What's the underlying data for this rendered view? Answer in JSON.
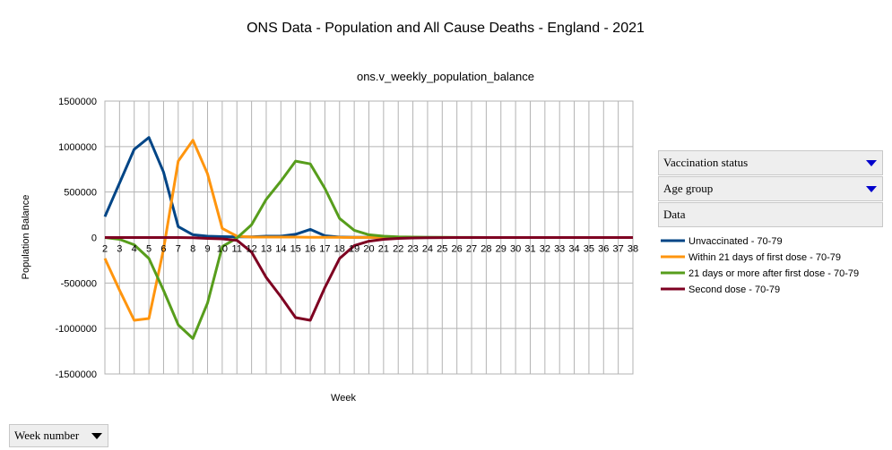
{
  "chart_data": {
    "type": "line",
    "title": "ONS Data - Population and All Cause Deaths - England - 2021",
    "subtitle": "ons.v_weekly_population_balance",
    "xlabel": "Week",
    "ylabel": "Population Balance",
    "ylim": [
      -1500000,
      1500000
    ],
    "yticks": [
      1500000,
      1000000,
      500000,
      0,
      -500000,
      -1000000,
      -1500000
    ],
    "ytick_labels": [
      "1500000",
      "1000000",
      "500000",
      "0",
      "-500000",
      "-1000000",
      "-1500000"
    ],
    "x": [
      "2",
      "3",
      "4",
      "5",
      "6",
      "7",
      "8",
      "9",
      "10",
      "11",
      "12",
      "13",
      "14",
      "15",
      "16",
      "17",
      "18",
      "19",
      "20",
      "21",
      "22",
      "23",
      "24",
      "25",
      "26",
      "27",
      "28",
      "29",
      "30",
      "31",
      "32",
      "33",
      "34",
      "35",
      "36",
      "37",
      "38"
    ],
    "grid": true,
    "legend_position": "right",
    "series": [
      {
        "name": "Unvaccinated - 70-79",
        "color": "#004586",
        "values": [
          230000,
          600000,
          970000,
          1100000,
          720000,
          120000,
          30000,
          15000,
          10000,
          8000,
          8000,
          15000,
          15000,
          35000,
          90000,
          20000,
          5000,
          3000,
          2000,
          1000,
          1000,
          500,
          500,
          0,
          0,
          0,
          0,
          0,
          0,
          0,
          0,
          0,
          0,
          0,
          0,
          0,
          0
        ]
      },
      {
        "name": "Within 21 days of first dose - 70-79",
        "color": "#ff950e",
        "values": [
          -230000,
          -580000,
          -910000,
          -890000,
          -130000,
          840000,
          1070000,
          700000,
          100000,
          15000,
          5000,
          5000,
          5000,
          5000,
          3000,
          2000,
          2000,
          1000,
          1000,
          500,
          500,
          0,
          0,
          0,
          0,
          0,
          0,
          0,
          0,
          0,
          0,
          0,
          0,
          0,
          0,
          0,
          0
        ]
      },
      {
        "name": "21 days or more after first dose - 70-79",
        "color": "#579d1c",
        "values": [
          0,
          -20000,
          -80000,
          -230000,
          -580000,
          -960000,
          -1110000,
          -720000,
          -100000,
          -5000,
          140000,
          420000,
          620000,
          840000,
          810000,
          540000,
          210000,
          80000,
          30000,
          15000,
          8000,
          5000,
          3000,
          2000,
          1000,
          500,
          0,
          0,
          0,
          0,
          0,
          0,
          0,
          0,
          0,
          0,
          0
        ]
      },
      {
        "name": "Second dose - 70-79",
        "color": "#7e0021",
        "values": [
          0,
          0,
          0,
          0,
          0,
          0,
          -2000,
          -10000,
          -15000,
          -30000,
          -160000,
          -440000,
          -650000,
          -880000,
          -910000,
          -550000,
          -230000,
          -90000,
          -40000,
          -20000,
          -10000,
          -5000,
          -3000,
          -1000,
          0,
          0,
          0,
          0,
          0,
          0,
          0,
          0,
          0,
          0,
          0,
          0,
          0
        ]
      }
    ]
  },
  "controls": {
    "vaccination_status": "Vaccination status",
    "age_group": "Age group",
    "data": "Data",
    "week_number": "Week number"
  }
}
